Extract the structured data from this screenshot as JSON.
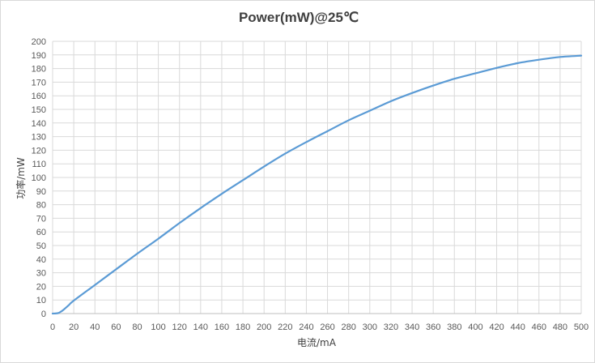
{
  "chart_data": {
    "type": "line",
    "title": "Power(mW)@25℃",
    "xlabel": "电流/mA",
    "ylabel": "功率/mW",
    "xlim": [
      0,
      500
    ],
    "ylim": [
      0,
      200
    ],
    "x_ticks": [
      0,
      20,
      40,
      60,
      80,
      100,
      120,
      140,
      160,
      180,
      200,
      220,
      240,
      260,
      280,
      300,
      320,
      340,
      360,
      380,
      400,
      420,
      440,
      460,
      480,
      500
    ],
    "y_ticks": [
      0,
      10,
      20,
      30,
      40,
      50,
      60,
      70,
      80,
      90,
      100,
      110,
      120,
      130,
      140,
      150,
      160,
      170,
      180,
      190,
      200
    ],
    "grid": true,
    "line_color": "#5b9bd5",
    "series": [
      {
        "x": [
          0,
          5,
          8,
          10,
          15,
          20,
          40,
          60,
          80,
          100,
          120,
          140,
          160,
          180,
          200,
          220,
          240,
          260,
          280,
          300,
          320,
          340,
          360,
          380,
          400,
          420,
          440,
          460,
          480,
          500
        ],
        "values": [
          0,
          0.3,
          1.5,
          2.6,
          6,
          9.5,
          21,
          32.5,
          44,
          55,
          66.5,
          77.5,
          88,
          98,
          108,
          117.5,
          126,
          134,
          142,
          149,
          156,
          162,
          167.5,
          172.5,
          176.5,
          180.5,
          184,
          186.5,
          188.5,
          189.5
        ]
      }
    ]
  }
}
